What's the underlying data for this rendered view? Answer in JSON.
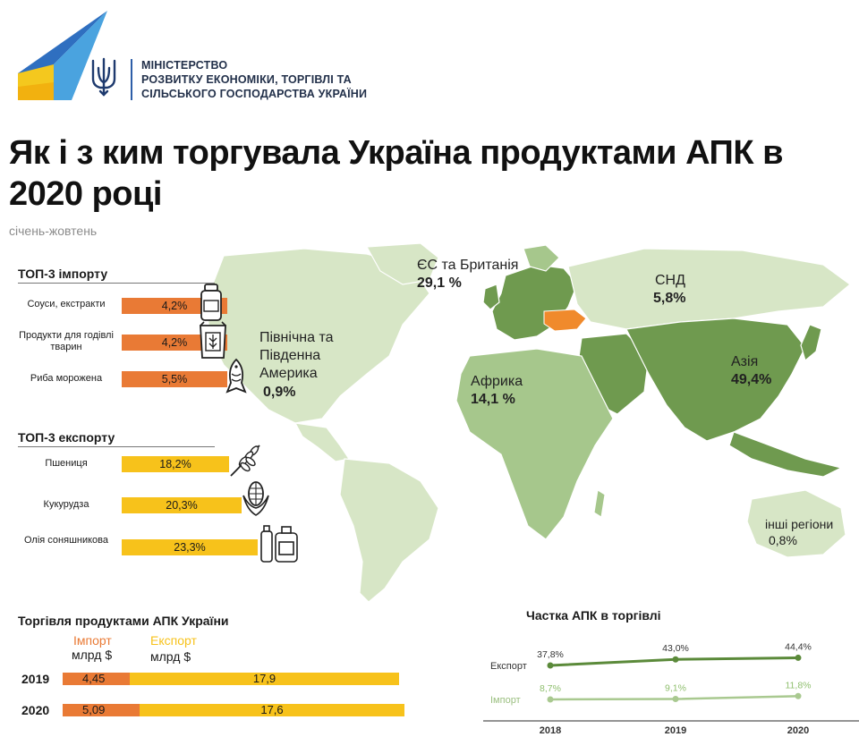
{
  "header": {
    "ministry": [
      "МІНІСТЕРСТВО",
      "РОЗВИТКУ ЕКОНОМІКИ, ТОРГІВЛІ ТА",
      "СІЛЬСЬКОГО ГОСПОДАРСТВА УКРАЇНИ"
    ],
    "title": "Як і з ким торгувала Україна продуктами АПК в 2020 році",
    "subtitle": "січень-жовтень"
  },
  "colors": {
    "import": "#e97a35",
    "export": "#f7c21b",
    "map_light": "#d7e6c6",
    "map_mid": "#a6c78c",
    "map_dark": "#6f9a4f",
    "ukraine": "#f08a2c",
    "line_export": "#5b8a3a",
    "line_import": "#a9c990"
  },
  "top_import": {
    "heading": "ТОП-3 імпорту",
    "items": [
      {
        "label": "Соуси, екстракти",
        "value": "4,2%",
        "num": 4.2,
        "icon": "jar-icon"
      },
      {
        "label": "Продукти для годівлі тварин",
        "value": "4,2%",
        "num": 4.2,
        "icon": "feed-bag-icon"
      },
      {
        "label": "Риба морожена",
        "value": "5,5%",
        "num": 5.5,
        "icon": "fish-icon"
      }
    ]
  },
  "top_export": {
    "heading": "ТОП-3 експорту",
    "items": [
      {
        "label": "Пшениця",
        "value": "18,2%",
        "num": 18.2,
        "icon": "wheat-icon"
      },
      {
        "label": "Кукурудза",
        "value": "20,3%",
        "num": 20.3,
        "icon": "corn-icon"
      },
      {
        "label": "Олія соняшникова",
        "value": "23,3%",
        "num": 23.3,
        "icon": "oil-bottles-icon"
      }
    ]
  },
  "regions": {
    "eu": {
      "name": "ЄС та Британія",
      "value": "29,1 %"
    },
    "cis": {
      "name": "СНД",
      "value": "5,8%"
    },
    "americas": {
      "name": "Північна та Південна Америка",
      "value": "0,9%"
    },
    "asia": {
      "name": "Азія",
      "value": "49,4%"
    },
    "africa": {
      "name": "Африка",
      "value": "14,1 %"
    },
    "other": {
      "name": "інші регіони",
      "value": "0,8%"
    }
  },
  "chart_data": [
    {
      "type": "bar",
      "title": "ТОП-3 імпорту",
      "categories": [
        "Соуси, екстракти",
        "Продукти для годівлі тварин",
        "Риба морожена"
      ],
      "values": [
        4.2,
        4.2,
        5.5
      ],
      "unit": "%"
    },
    {
      "type": "bar",
      "title": "ТОП-3 експорту",
      "categories": [
        "Пшениця",
        "Кукурудза",
        "Олія соняшникова"
      ],
      "values": [
        18.2,
        20.3,
        23.3
      ],
      "unit": "%"
    },
    {
      "type": "bar",
      "title": "Торгівля продуктами АПК  України",
      "stacked": true,
      "categories": [
        "2019",
        "2020"
      ],
      "series": [
        {
          "name": "Імпорт",
          "values": [
            4.45,
            5.09
          ],
          "labels": [
            "4,45",
            "5,09"
          ]
        },
        {
          "name": "Експорт",
          "values": [
            17.9,
            17.6
          ],
          "labels": [
            "17,9",
            "17,6"
          ]
        }
      ],
      "unit_label": "млрд $"
    },
    {
      "type": "line",
      "title": "Частка АПК в торгівлі",
      "x": [
        "2018",
        "2019",
        "2020"
      ],
      "series": [
        {
          "name": "Експорт",
          "values": [
            37.8,
            43.0,
            44.4
          ],
          "labels": [
            "37,8%",
            "43,0%",
            "44,4%"
          ]
        },
        {
          "name": "Імпорт",
          "values": [
            8.7,
            9.1,
            11.8
          ],
          "labels": [
            "8,7%",
            "9,1%",
            "11,8%"
          ]
        }
      ],
      "ylim": [
        0,
        50
      ]
    }
  ],
  "trade": {
    "title": "Торгівля продуктами АПК  України",
    "import_word": "Імпорт",
    "export_word": "Експорт",
    "unit": "млрд $",
    "rows": [
      {
        "year": "2019",
        "import_label": "4,45",
        "export_label": "17,9"
      },
      {
        "year": "2020",
        "import_label": "5,09",
        "export_label": "17,6"
      }
    ]
  },
  "share": {
    "title": "Частка АПК в торгівлі"
  }
}
